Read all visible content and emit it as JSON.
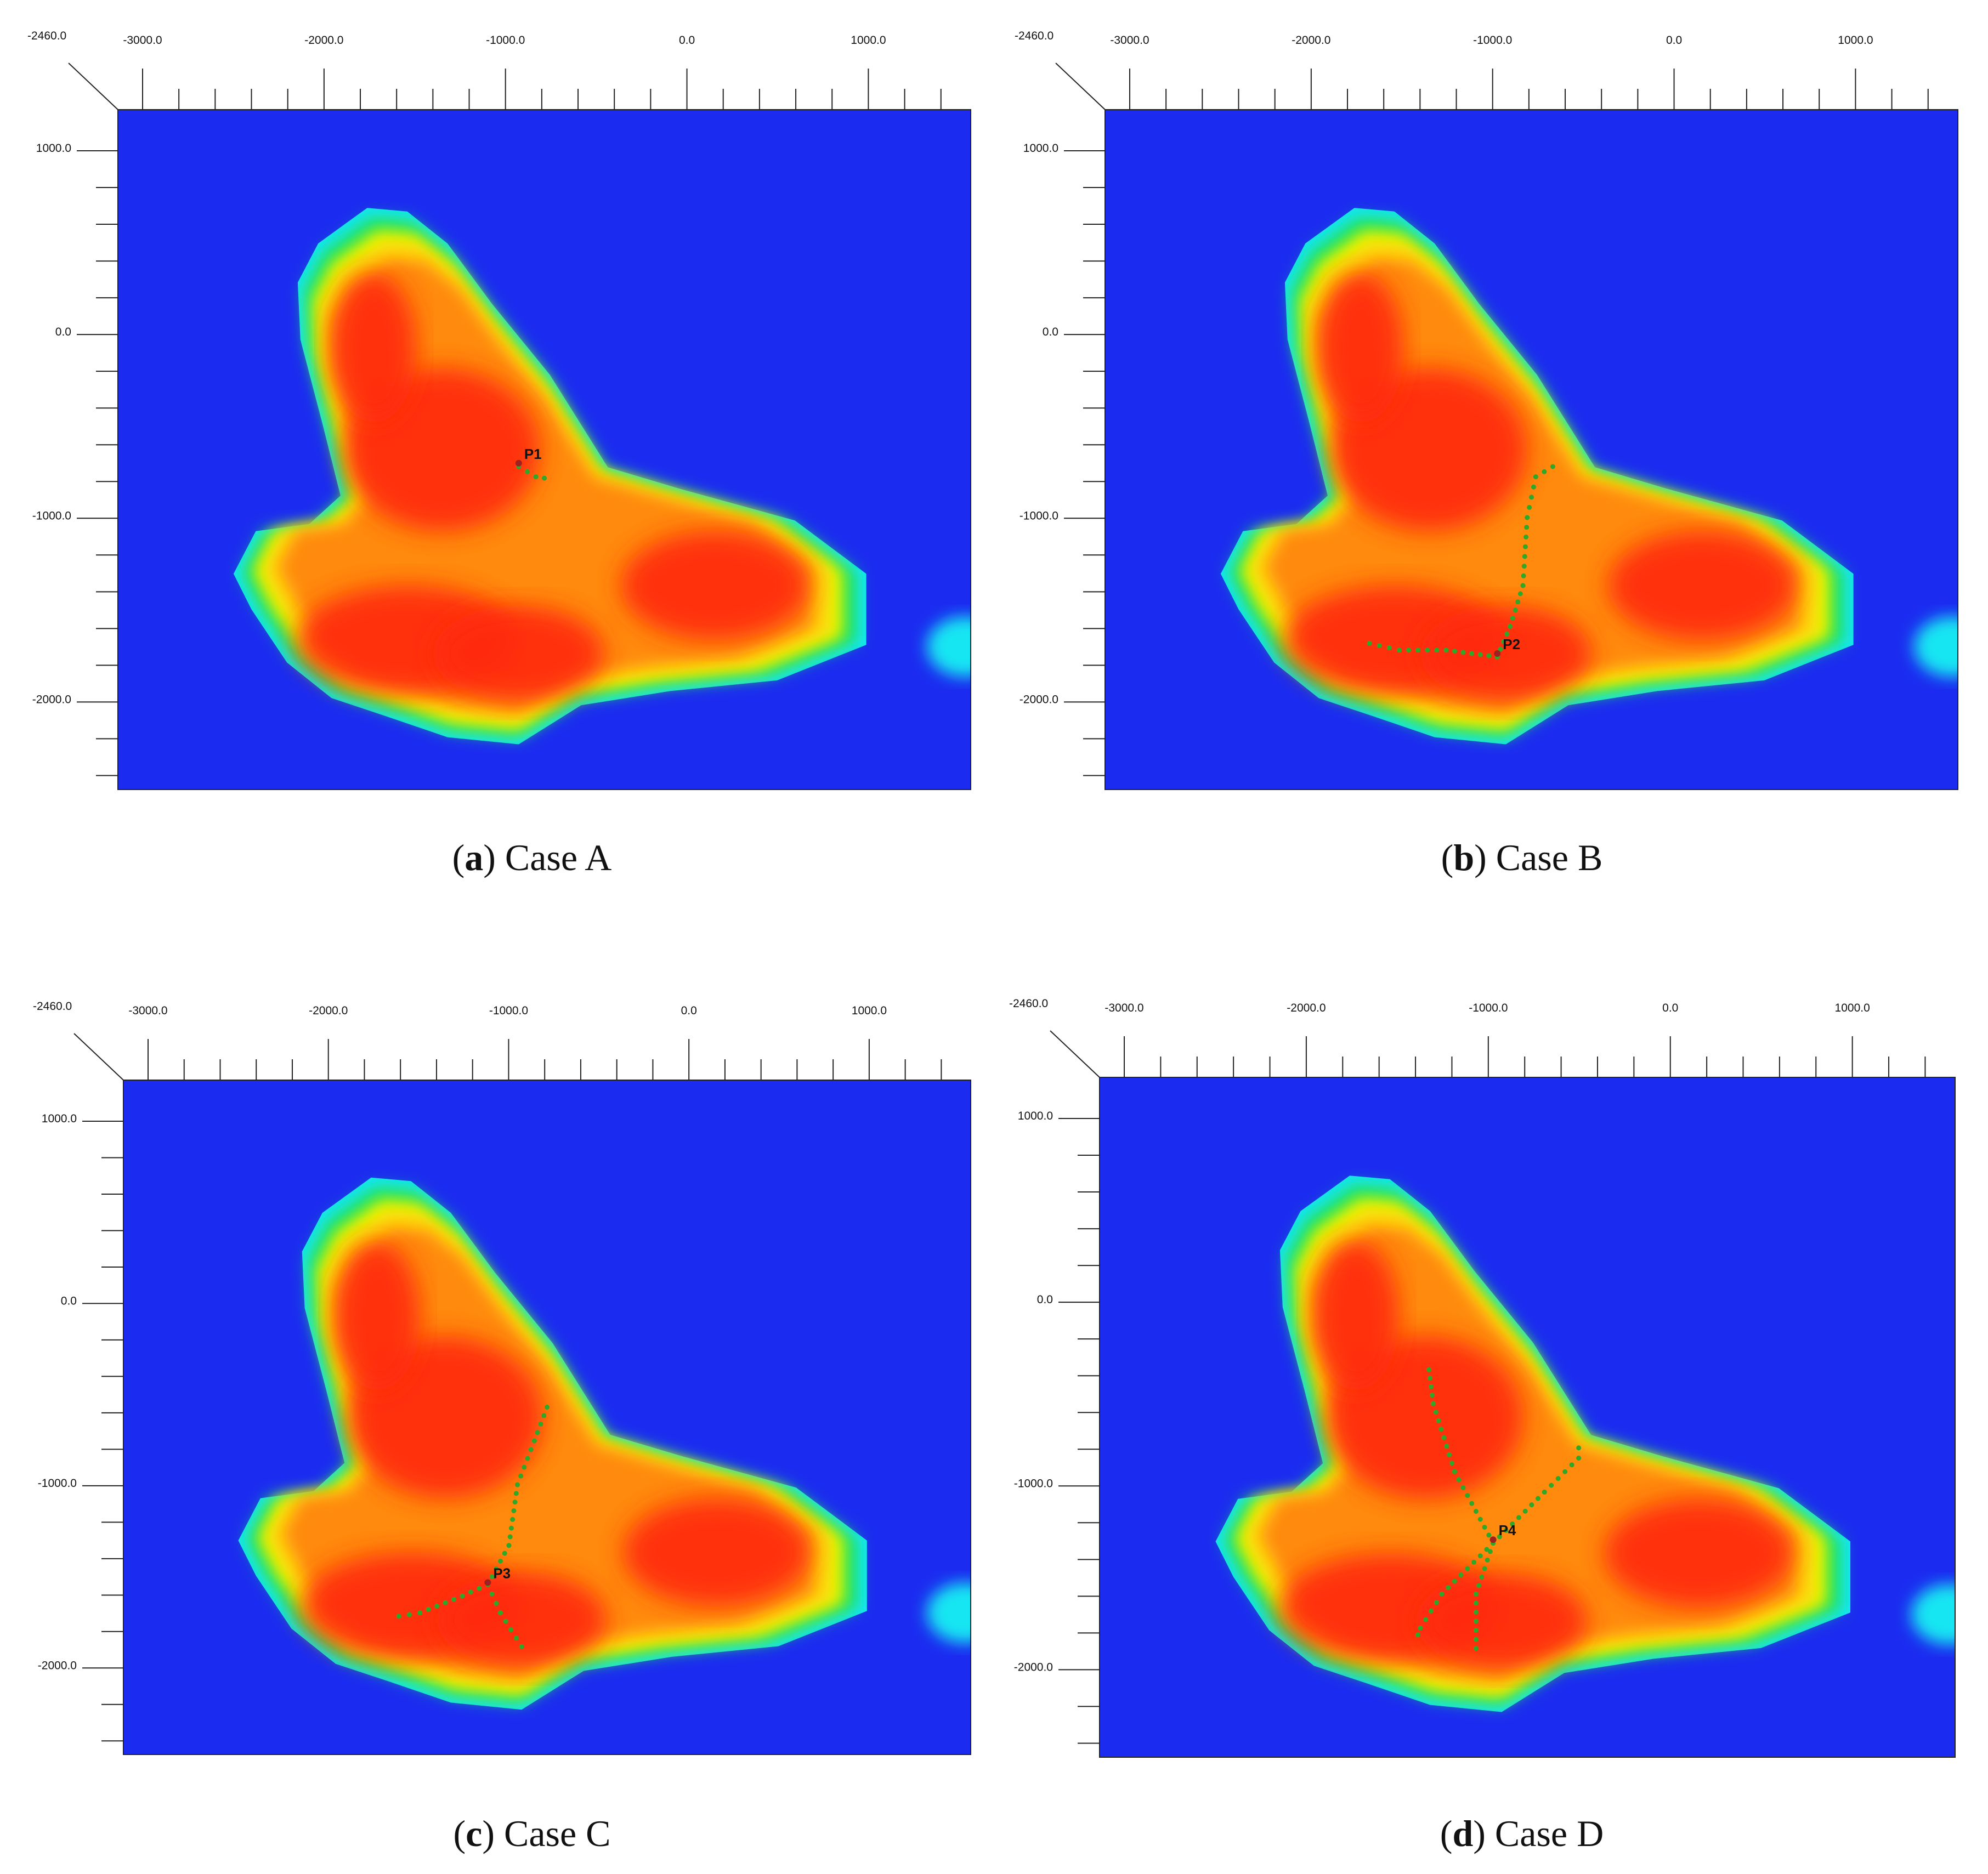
{
  "colors": {
    "background": "#1b2cf0",
    "colormap": [
      "#1b2cf0",
      "#18e6f2",
      "#19e05a",
      "#e8f700",
      "#ffd20a",
      "#ff8a10",
      "#ff2a10"
    ]
  },
  "axis_labels": {
    "x_ticks": [
      "-3000.0",
      "-2000.0",
      "-1000.0",
      "0.0",
      "1000.0"
    ],
    "y_ticks": [
      "1000.0",
      "0.0",
      "-1000.0",
      "-2000.0"
    ],
    "corner_label": "-2460.0"
  },
  "panels": [
    {
      "letter": "a",
      "case": "Case A",
      "well_label": "P1"
    },
    {
      "letter": "b",
      "case": "Case B",
      "well_label": "P2"
    },
    {
      "letter": "c",
      "case": "Case C",
      "well_label": "P3"
    },
    {
      "letter": "d",
      "case": "Case D",
      "well_label": "P4"
    }
  ]
}
